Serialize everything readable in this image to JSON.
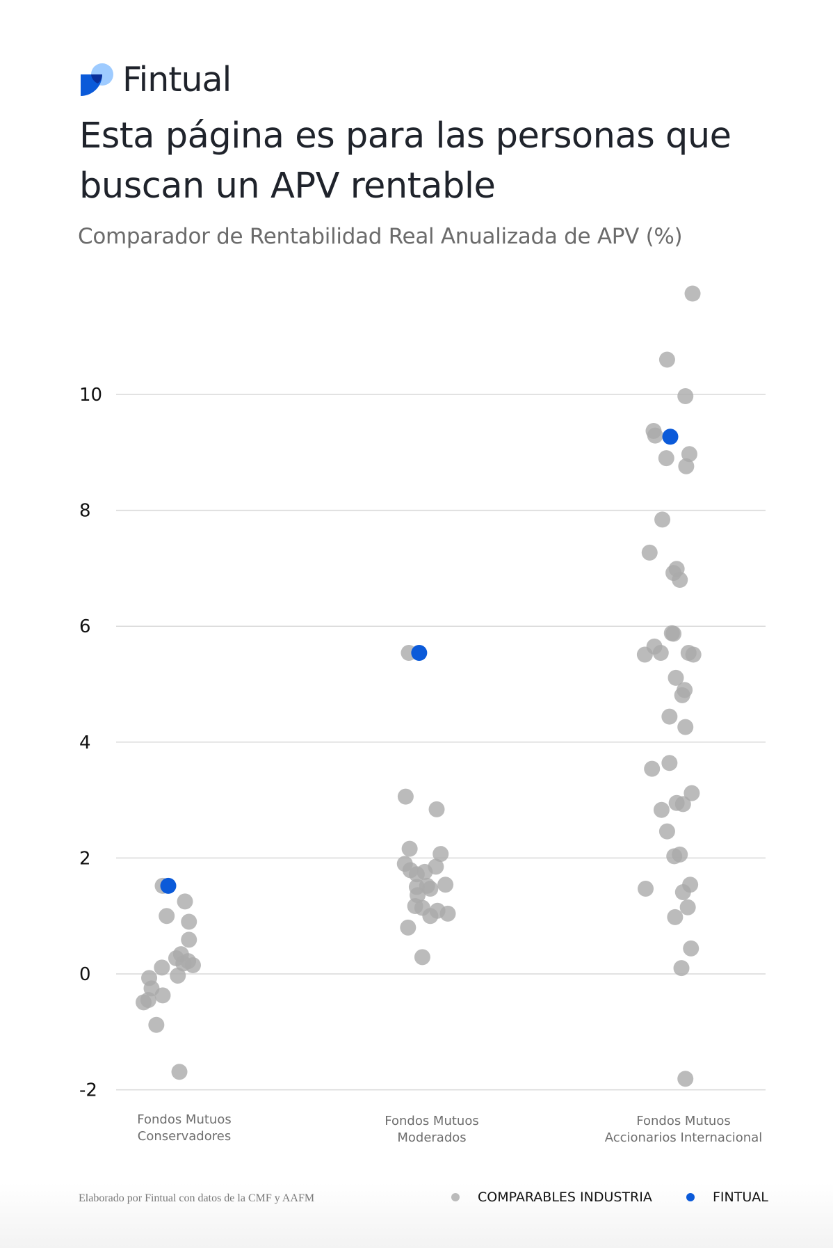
{
  "header": {
    "brand": "Fintual",
    "headline": "Esta página es para las personas que buscan un APV rentable",
    "subtitle": "Comparador de Rentabilidad Real Anualizada de APV (%)"
  },
  "footer": {
    "source": "Elaborado por Fintual con datos de la CMF y AAFM"
  },
  "colors": {
    "industry": "#aaaaaa",
    "fintual": "#0b5ad9",
    "grid": "#d9d9d9",
    "logo_dark": "#0b5ad9",
    "logo_light": "#9ecbff"
  },
  "chart_data": {
    "type": "scatter",
    "title": "Comparador de Rentabilidad Real Anualizada de APV (%)",
    "ylim": [
      -2,
      12
    ],
    "yticks": [
      -2,
      0,
      2,
      4,
      6,
      8,
      10
    ],
    "ytick_labels": [
      "-2",
      "0",
      "2",
      "4",
      "6",
      "8",
      "10"
    ],
    "grid": true,
    "legend_position": "bottom-right",
    "categories": [
      {
        "line1": "Fondos Mutuos",
        "line2": "Conservadores"
      },
      {
        "line1": "Fondos Mutuos",
        "line2": "Moderados"
      },
      {
        "line1": "Fondos Mutuos",
        "line2": "Accionarios Internacional"
      }
    ],
    "series": [
      {
        "name": "COMPARABLES INDUSTRIA",
        "values": [
          [
            1.52,
            1.25,
            1.0,
            0.9,
            0.59,
            0.27,
            0.34,
            0.22,
            0.15,
            0.18,
            0.11,
            -0.03,
            -0.07,
            -0.25,
            -0.37,
            -0.45,
            -0.49,
            -0.88,
            -1.69
          ],
          [
            5.54,
            3.06,
            2.84,
            2.16,
            2.07,
            1.9,
            1.85,
            1.79,
            1.72,
            1.76,
            1.54,
            1.52,
            1.5,
            1.47,
            1.36,
            1.17,
            1.14,
            1.09,
            1.04,
            1.0,
            0.8,
            0.29
          ],
          [
            11.74,
            10.6,
            9.97,
            9.37,
            9.29,
            8.97,
            8.9,
            8.76,
            7.84,
            7.27,
            6.99,
            6.92,
            6.8,
            5.88,
            5.87,
            5.65,
            5.51,
            5.54,
            5.54,
            5.51,
            5.11,
            4.9,
            4.81,
            4.44,
            4.26,
            3.64,
            3.54,
            3.12,
            2.95,
            2.93,
            2.83,
            2.46,
            2.03,
            2.06,
            1.47,
            1.54,
            1.41,
            1.15,
            0.98,
            0.44,
            0.1,
            -1.81
          ]
        ]
      },
      {
        "name": "FINTUAL",
        "values": [
          [
            1.52
          ],
          [
            5.54
          ],
          [
            9.27
          ]
        ]
      }
    ]
  }
}
